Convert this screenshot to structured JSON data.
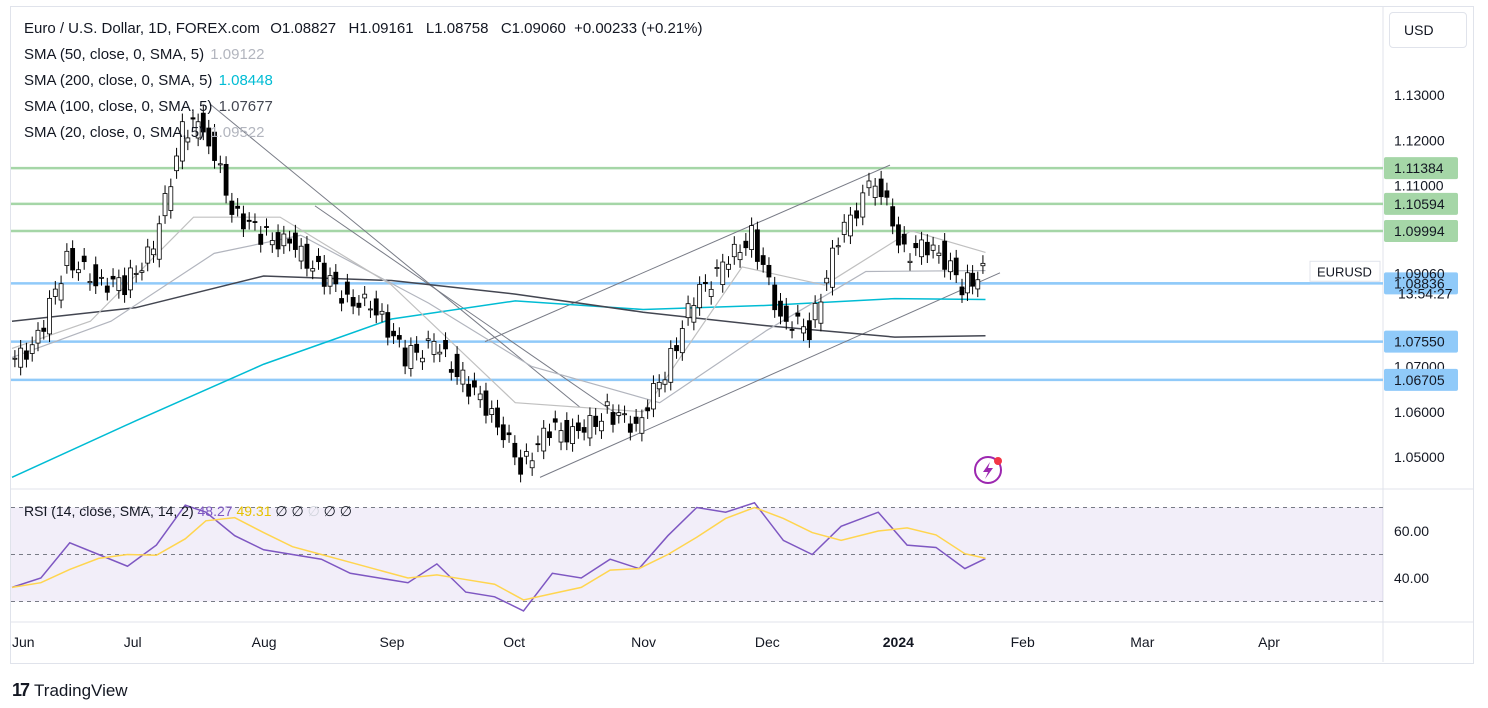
{
  "header": {
    "symbol_title": "Euro / U.S. Dollar, 1D, FOREX.com",
    "ohlc": [
      {
        "label": "O",
        "value": "1.08827"
      },
      {
        "label": "H",
        "value": "1.09161"
      },
      {
        "label": "L",
        "value": "1.08758"
      },
      {
        "label": "C",
        "value": "1.09060"
      }
    ],
    "change": "+0.00233 (+0.21%)"
  },
  "indicators": [
    {
      "label": "SMA (50, close, 0, SMA, 5)",
      "value": "1.09122",
      "color": "#b2b5be"
    },
    {
      "label": "SMA (200, close, 0, SMA, 5)",
      "value": "1.08448",
      "color": "#00bcd4"
    },
    {
      "label": "SMA (100, close, 0, SMA, 5)",
      "value": "1.07677",
      "color": "#434651"
    },
    {
      "label": "SMA (20, close, 0, SMA, 5)",
      "value": "1.09522",
      "color": "#c0c0c0"
    }
  ],
  "currency_button": "USD",
  "price_axis": {
    "ticks": [
      "1.13000",
      "1.12000",
      "1.11000",
      "1.07000",
      "1.06000",
      "1.05000"
    ],
    "level_badges": [
      {
        "value": "1.11384",
        "color": "#a5d6a7"
      },
      {
        "value": "1.10594",
        "color": "#a5d6a7"
      },
      {
        "value": "1.09994",
        "color": "#a5d6a7"
      },
      {
        "value": "1.08836",
        "color": "#90caf9"
      },
      {
        "value": "1.07550",
        "color": "#90caf9"
      },
      {
        "value": "1.06705",
        "color": "#90caf9"
      }
    ],
    "symbol_tag": "EURUSD",
    "last_price": "1.09060",
    "countdown": "13:54:27"
  },
  "rsi": {
    "legend": "RSI (14, close, SMA, 14, 2)",
    "value": "48.27",
    "sma_value": "49.31",
    "extras": [
      "∅",
      "∅",
      "∅",
      "∅",
      "∅"
    ],
    "ticks": [
      "60.00",
      "40.00"
    ],
    "upper": 70,
    "middle": 50,
    "lower": 30,
    "color_rsi": "#7e57c2",
    "color_sma": "#ffd54f"
  },
  "time_axis": [
    "Jun",
    "Jul",
    "Aug",
    "Sep",
    "Oct",
    "Nov",
    "Dec",
    "2024",
    "Feb",
    "Mar",
    "Apr"
  ],
  "branding": "TradingView",
  "chart_data": {
    "type": "candlestick",
    "title": "Euro / U.S. Dollar, 1D, FOREX.com",
    "ylim": [
      1.043,
      1.135
    ],
    "horizontal_levels": [
      1.11384,
      1.10594,
      1.09994,
      1.08836,
      1.0755,
      1.06705
    ],
    "close_series": {
      "x": [
        "2023-06-01",
        "2023-06-08",
        "2023-06-15",
        "2023-06-22",
        "2023-06-29",
        "2023-07-06",
        "2023-07-13",
        "2023-07-18",
        "2023-07-25",
        "2023-08-01",
        "2023-08-08",
        "2023-08-15",
        "2023-08-22",
        "2023-08-29",
        "2023-09-05",
        "2023-09-12",
        "2023-09-19",
        "2023-09-26",
        "2023-10-03",
        "2023-10-10",
        "2023-10-17",
        "2023-10-24",
        "2023-10-31",
        "2023-11-07",
        "2023-11-14",
        "2023-11-21",
        "2023-11-28",
        "2023-12-05",
        "2023-12-12",
        "2023-12-19",
        "2023-12-28",
        "2024-01-04",
        "2024-01-11",
        "2024-01-18",
        "2024-01-23"
      ],
      "close": [
        1.07,
        1.076,
        1.094,
        1.089,
        1.088,
        1.096,
        1.122,
        1.124,
        1.105,
        1.099,
        1.097,
        1.091,
        1.085,
        1.083,
        1.072,
        1.075,
        1.067,
        1.06,
        1.048,
        1.056,
        1.055,
        1.06,
        1.057,
        1.069,
        1.085,
        1.092,
        1.099,
        1.081,
        1.078,
        1.098,
        1.112,
        1.095,
        1.097,
        1.088,
        1.0906
      ]
    },
    "rsi_series": [
      36,
      40,
      55,
      50,
      45,
      54,
      71,
      68,
      58,
      52,
      50,
      48,
      42,
      40,
      38,
      46,
      34,
      32,
      26,
      42,
      40,
      48,
      44,
      58,
      70,
      68,
      72,
      56,
      50,
      62,
      68,
      54,
      53,
      44,
      48.27
    ]
  }
}
